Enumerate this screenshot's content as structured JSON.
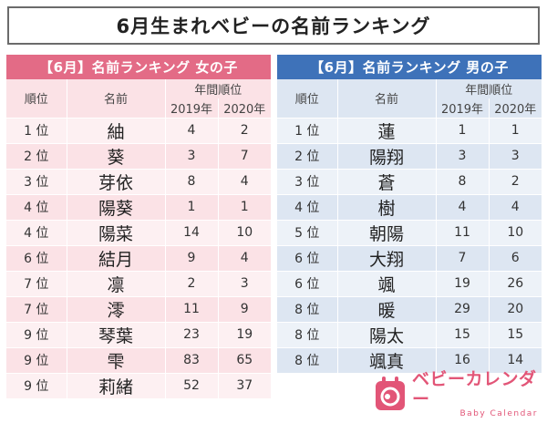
{
  "title": "6月生まれベビーの名前ランキング",
  "girls": {
    "heading": "【6月】名前ランキング 女の子",
    "col_rank": "順位",
    "col_name": "名前",
    "col_yearly": "年間順位",
    "col_y1": "2019年",
    "col_y2": "2020年",
    "rows": [
      {
        "rank": "1 位",
        "name": "紬",
        "y2019": "4",
        "y2020": "2"
      },
      {
        "rank": "2 位",
        "name": "葵",
        "y2019": "3",
        "y2020": "7"
      },
      {
        "rank": "3 位",
        "name": "芽依",
        "y2019": "8",
        "y2020": "4"
      },
      {
        "rank": "4 位",
        "name": "陽葵",
        "y2019": "1",
        "y2020": "1"
      },
      {
        "rank": "4 位",
        "name": "陽菜",
        "y2019": "14",
        "y2020": "10"
      },
      {
        "rank": "6 位",
        "name": "結月",
        "y2019": "9",
        "y2020": "4"
      },
      {
        "rank": "7 位",
        "name": "凛",
        "y2019": "2",
        "y2020": "3"
      },
      {
        "rank": "7 位",
        "name": "澪",
        "y2019": "11",
        "y2020": "9"
      },
      {
        "rank": "9 位",
        "name": "琴葉",
        "y2019": "23",
        "y2020": "19"
      },
      {
        "rank": "9 位",
        "name": "雫",
        "y2019": "83",
        "y2020": "65"
      },
      {
        "rank": "9 位",
        "name": "莉緒",
        "y2019": "52",
        "y2020": "37"
      }
    ]
  },
  "boys": {
    "heading": "【6月】名前ランキング 男の子",
    "col_rank": "順位",
    "col_name": "名前",
    "col_yearly": "年間順位",
    "col_y1": "2019年",
    "col_y2": "2020年",
    "rows": [
      {
        "rank": "1 位",
        "name": "蓮",
        "y2019": "1",
        "y2020": "1"
      },
      {
        "rank": "2 位",
        "name": "陽翔",
        "y2019": "3",
        "y2020": "3"
      },
      {
        "rank": "3 位",
        "name": "蒼",
        "y2019": "8",
        "y2020": "2"
      },
      {
        "rank": "4 位",
        "name": "樹",
        "y2019": "4",
        "y2020": "4"
      },
      {
        "rank": "5 位",
        "name": "朝陽",
        "y2019": "11",
        "y2020": "10"
      },
      {
        "rank": "6 位",
        "name": "大翔",
        "y2019": "7",
        "y2020": "6"
      },
      {
        "rank": "6 位",
        "name": "颯",
        "y2019": "19",
        "y2020": "26"
      },
      {
        "rank": "8 位",
        "name": "暖",
        "y2019": "29",
        "y2020": "20"
      },
      {
        "rank": "8 位",
        "name": "陽太",
        "y2019": "15",
        "y2020": "15"
      },
      {
        "rank": "8 位",
        "name": "颯真",
        "y2019": "16",
        "y2020": "14"
      }
    ]
  },
  "logo": {
    "main": "ベビーカレンダー",
    "sub": "Baby Calendar",
    "icon": "baby-calendar-logo-icon",
    "color": "#e25577"
  },
  "colors": {
    "girls_accent": "#e36b86",
    "boys_accent": "#3e72b9"
  }
}
